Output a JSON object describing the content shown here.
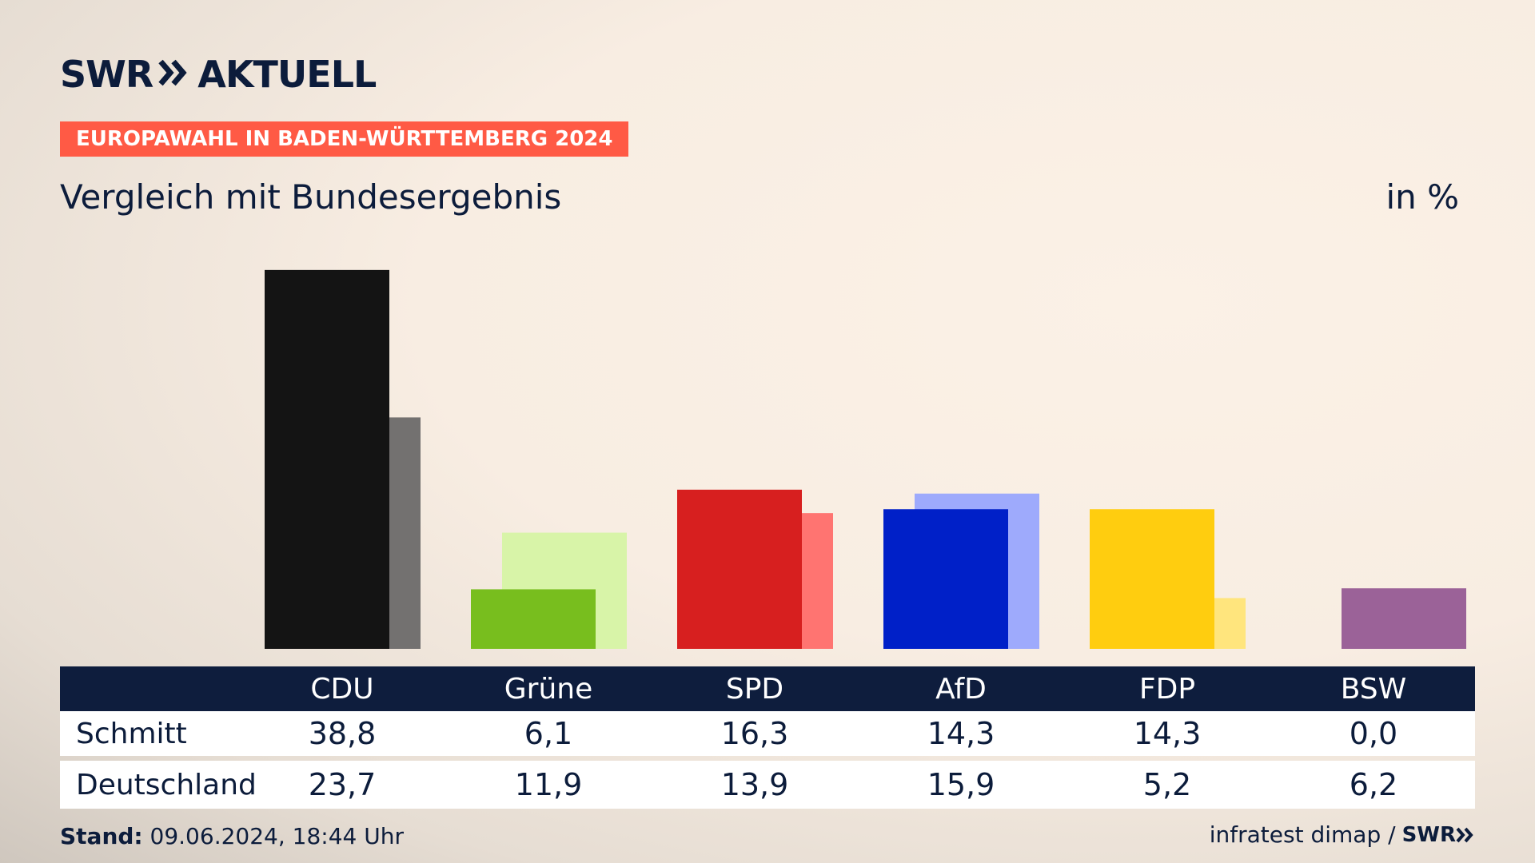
{
  "header": {
    "logo_left": "SWR",
    "logo_right": "AKTUELL",
    "badge": "EUROPAWAHL IN BADEN-WÜRTTEMBERG 2024",
    "subtitle": "Vergleich mit Bundesergebnis",
    "unit": "in %"
  },
  "table": {
    "row_labels": [
      "Schmitt",
      "Deutschland"
    ]
  },
  "footer": {
    "stand_label": "Stand:",
    "stand_value": "09.06.2024, 18:44 Uhr",
    "source": "infratest dimap /",
    "source_logo": "SWR"
  },
  "colors": {
    "background": "#f8ede2",
    "navy": "#0e1d3d",
    "badge": "#ff5a45"
  },
  "chart_data": {
    "type": "bar",
    "title": "Vergleich mit Bundesergebnis",
    "unit": "in %",
    "categories": [
      "CDU",
      "Grüne",
      "SPD",
      "AfD",
      "FDP",
      "BSW"
    ],
    "series": [
      {
        "name": "Schmitt",
        "values": [
          38.8,
          6.1,
          16.3,
          14.3,
          14.3,
          0.0
        ],
        "values_text": [
          "38,8",
          "6,1",
          "16,3",
          "14,3",
          "14,3",
          "0,0"
        ],
        "colors": [
          "#141414",
          "#78be1e",
          "#d71f1f",
          "#0020c8",
          "#ffcd0f",
          "#9b6298"
        ]
      },
      {
        "name": "Deutschland",
        "values": [
          23.7,
          11.9,
          13.9,
          15.9,
          5.2,
          6.2
        ],
        "values_text": [
          "23,7",
          "11,9",
          "13,9",
          "15,9",
          "5,2",
          "6,2"
        ],
        "colors": [
          "#737170",
          "#d8f4a8",
          "#ff7471",
          "#9eaafc",
          "#ffe57d",
          "#9b6298"
        ]
      }
    ],
    "ylim": [
      0,
      40
    ],
    "grid": false,
    "legend": "none"
  }
}
